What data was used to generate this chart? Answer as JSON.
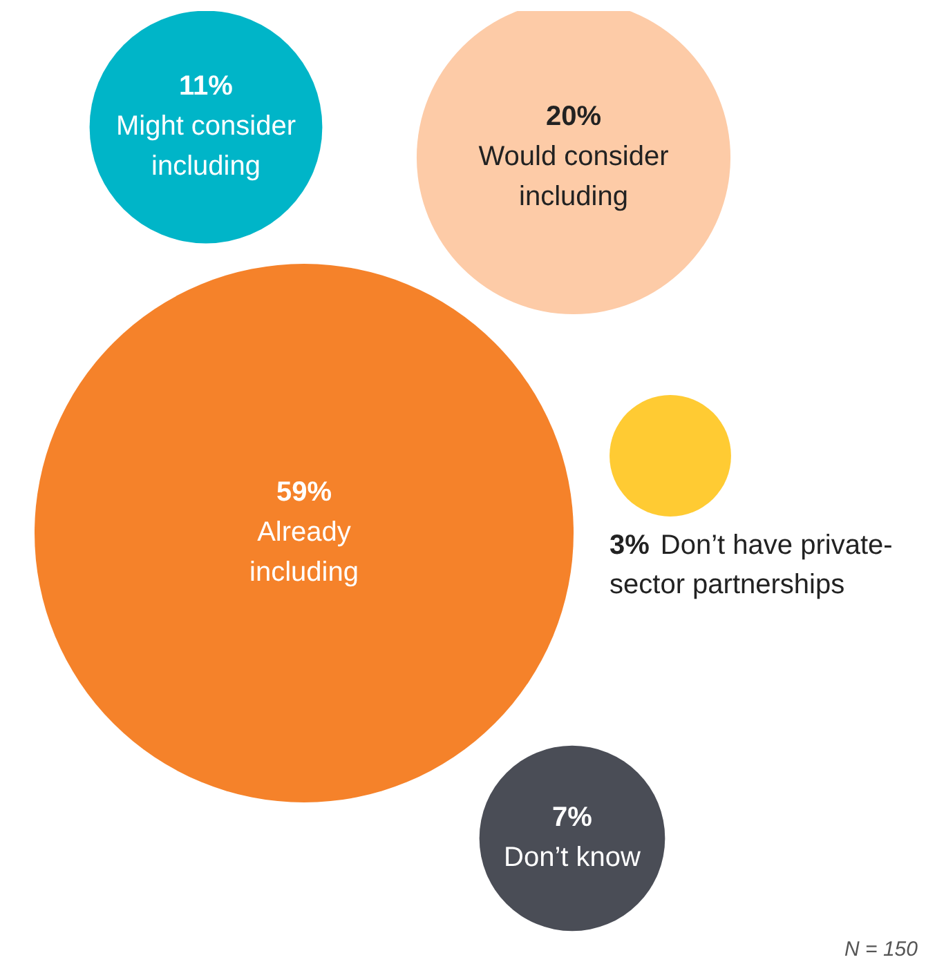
{
  "chart_data": {
    "type": "other",
    "categories": [
      "Already including",
      "Would consider including",
      "Might consider including",
      "Don’t have private-sector partnerships",
      "Don’t know"
    ],
    "values": [
      59,
      20,
      11,
      3,
      7
    ],
    "value_labels": [
      "59%",
      "20%",
      "11%",
      "3%",
      "7%"
    ],
    "colors": [
      "#f5822a",
      "#fdcba7",
      "#00b5c8",
      "#ffcb33",
      "#4a4d56"
    ],
    "annotations": [
      "N = 150"
    ]
  }
}
